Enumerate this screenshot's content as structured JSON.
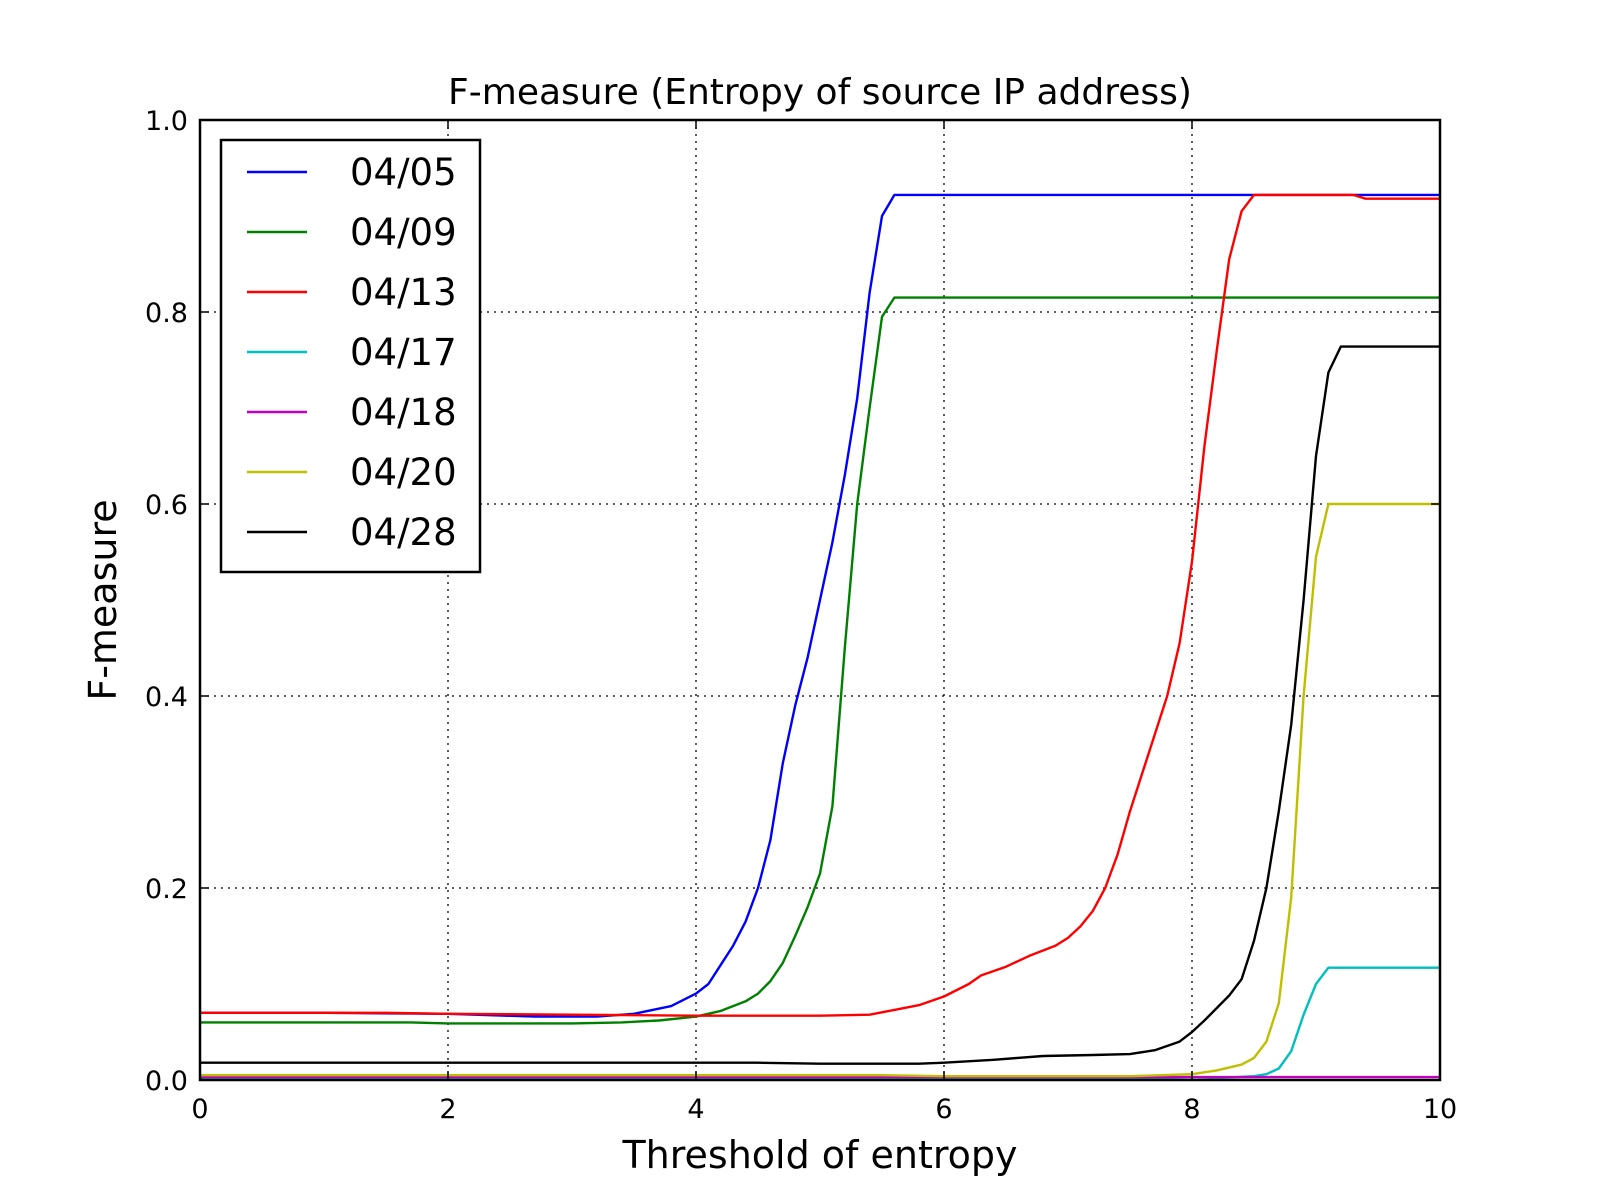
{
  "chart_data": {
    "type": "line",
    "title": "F-measure (Entropy of source IP address)",
    "xlabel": "Threshold of entropy",
    "ylabel": "F-measure",
    "xlim": [
      0,
      10
    ],
    "ylim": [
      0,
      1
    ],
    "xticks": [
      0,
      2,
      4,
      6,
      8,
      10
    ],
    "yticks": [
      0.0,
      0.2,
      0.4,
      0.6,
      0.8,
      1.0
    ],
    "xtick_labels": [
      "0",
      "2",
      "4",
      "6",
      "8",
      "10"
    ],
    "ytick_labels": [
      "0.0",
      "0.2",
      "0.4",
      "0.6",
      "0.8",
      "1.0"
    ],
    "grid": true,
    "legend_position": "top-left",
    "series": [
      {
        "name": "04/05",
        "color": "#0000ff",
        "points": [
          [
            0,
            0.07
          ],
          [
            1,
            0.07
          ],
          [
            2,
            0.069
          ],
          [
            2.7,
            0.066
          ],
          [
            3.2,
            0.066
          ],
          [
            3.5,
            0.069
          ],
          [
            3.8,
            0.077
          ],
          [
            4,
            0.09
          ],
          [
            4.1,
            0.1
          ],
          [
            4.2,
            0.12
          ],
          [
            4.3,
            0.14
          ],
          [
            4.4,
            0.165
          ],
          [
            4.5,
            0.2
          ],
          [
            4.6,
            0.25
          ],
          [
            4.7,
            0.33
          ],
          [
            4.8,
            0.39
          ],
          [
            4.9,
            0.44
          ],
          [
            5.0,
            0.5
          ],
          [
            5.1,
            0.56
          ],
          [
            5.2,
            0.63
          ],
          [
            5.3,
            0.71
          ],
          [
            5.4,
            0.82
          ],
          [
            5.5,
            0.9
          ],
          [
            5.6,
            0.922
          ],
          [
            10,
            0.922
          ]
        ]
      },
      {
        "name": "04/09",
        "color": "#008000",
        "points": [
          [
            0,
            0.06
          ],
          [
            1.7,
            0.06
          ],
          [
            2,
            0.059
          ],
          [
            3,
            0.059
          ],
          [
            3.4,
            0.06
          ],
          [
            3.7,
            0.062
          ],
          [
            4,
            0.066
          ],
          [
            4.2,
            0.072
          ],
          [
            4.4,
            0.082
          ],
          [
            4.5,
            0.09
          ],
          [
            4.6,
            0.103
          ],
          [
            4.7,
            0.122
          ],
          [
            4.8,
            0.15
          ],
          [
            4.9,
            0.18
          ],
          [
            5.0,
            0.215
          ],
          [
            5.1,
            0.285
          ],
          [
            5.2,
            0.45
          ],
          [
            5.3,
            0.6
          ],
          [
            5.4,
            0.7
          ],
          [
            5.5,
            0.795
          ],
          [
            5.6,
            0.815
          ],
          [
            10,
            0.815
          ]
        ]
      },
      {
        "name": "04/13",
        "color": "#ff0000",
        "points": [
          [
            0,
            0.07
          ],
          [
            1.5,
            0.07
          ],
          [
            2,
            0.069
          ],
          [
            3,
            0.068
          ],
          [
            4,
            0.067
          ],
          [
            5,
            0.067
          ],
          [
            5.4,
            0.068
          ],
          [
            5.6,
            0.073
          ],
          [
            5.8,
            0.078
          ],
          [
            6.0,
            0.087
          ],
          [
            6.2,
            0.1
          ],
          [
            6.3,
            0.109
          ],
          [
            6.5,
            0.118
          ],
          [
            6.7,
            0.13
          ],
          [
            6.9,
            0.14
          ],
          [
            7.0,
            0.148
          ],
          [
            7.1,
            0.16
          ],
          [
            7.2,
            0.176
          ],
          [
            7.3,
            0.2
          ],
          [
            7.4,
            0.235
          ],
          [
            7.5,
            0.28
          ],
          [
            7.6,
            0.32
          ],
          [
            7.7,
            0.36
          ],
          [
            7.8,
            0.4
          ],
          [
            7.9,
            0.455
          ],
          [
            8.0,
            0.54
          ],
          [
            8.1,
            0.66
          ],
          [
            8.2,
            0.76
          ],
          [
            8.3,
            0.855
          ],
          [
            8.4,
            0.905
          ],
          [
            8.5,
            0.922
          ],
          [
            9.3,
            0.922
          ],
          [
            9.4,
            0.918
          ],
          [
            10,
            0.918
          ]
        ]
      },
      {
        "name": "04/17",
        "color": "#00bfbf",
        "points": [
          [
            0,
            0.002
          ],
          [
            7.8,
            0.002
          ],
          [
            8.0,
            0.003
          ],
          [
            8.2,
            0.002
          ],
          [
            8.5,
            0.004
          ],
          [
            8.6,
            0.006
          ],
          [
            8.7,
            0.012
          ],
          [
            8.8,
            0.03
          ],
          [
            8.9,
            0.068
          ],
          [
            9.0,
            0.1
          ],
          [
            9.1,
            0.117
          ],
          [
            10,
            0.117
          ]
        ]
      },
      {
        "name": "04/18",
        "color": "#bf00bf",
        "points": [
          [
            0,
            0.003
          ],
          [
            10,
            0.003
          ]
        ]
      },
      {
        "name": "04/20",
        "color": "#bfbf00",
        "points": [
          [
            0,
            0.005
          ],
          [
            5.5,
            0.005
          ],
          [
            6,
            0.004
          ],
          [
            7.5,
            0.004
          ],
          [
            8.0,
            0.006
          ],
          [
            8.2,
            0.01
          ],
          [
            8.4,
            0.016
          ],
          [
            8.5,
            0.023
          ],
          [
            8.6,
            0.04
          ],
          [
            8.7,
            0.08
          ],
          [
            8.8,
            0.19
          ],
          [
            8.9,
            0.4
          ],
          [
            9.0,
            0.545
          ],
          [
            9.1,
            0.6
          ],
          [
            10,
            0.6
          ]
        ]
      },
      {
        "name": "04/28",
        "color": "#000000",
        "points": [
          [
            0,
            0.018
          ],
          [
            4.5,
            0.018
          ],
          [
            5.0,
            0.017
          ],
          [
            5.8,
            0.017
          ],
          [
            6.0,
            0.018
          ],
          [
            6.4,
            0.021
          ],
          [
            6.8,
            0.025
          ],
          [
            7.2,
            0.026
          ],
          [
            7.5,
            0.027
          ],
          [
            7.7,
            0.031
          ],
          [
            7.9,
            0.04
          ],
          [
            8.0,
            0.05
          ],
          [
            8.1,
            0.062
          ],
          [
            8.2,
            0.075
          ],
          [
            8.3,
            0.088
          ],
          [
            8.4,
            0.105
          ],
          [
            8.5,
            0.145
          ],
          [
            8.6,
            0.2
          ],
          [
            8.7,
            0.28
          ],
          [
            8.8,
            0.37
          ],
          [
            8.9,
            0.5
          ],
          [
            9.0,
            0.65
          ],
          [
            9.1,
            0.737
          ],
          [
            9.2,
            0.764
          ],
          [
            10,
            0.764
          ]
        ]
      }
    ]
  }
}
